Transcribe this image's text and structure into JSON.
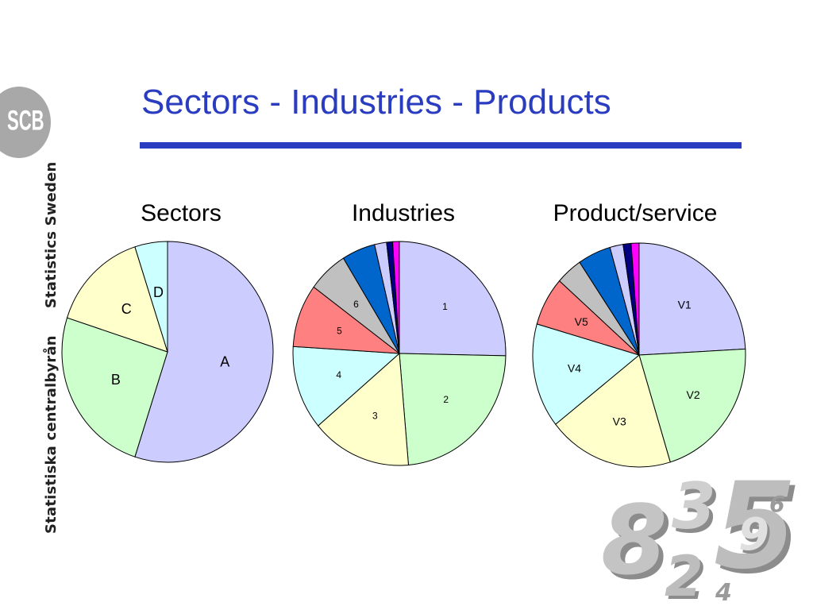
{
  "title": "Sectors - Industries - Products",
  "logo": {
    "text": "SCB",
    "color": "#a8a8a8"
  },
  "side_text": {
    "top": "Statistics Sweden",
    "bottom": "Statistiska centralbyrån"
  },
  "colors": {
    "title": "#2a3cbf",
    "rule": "#2a3cbf"
  },
  "chart_data": [
    {
      "type": "pie",
      "title": "Sectors",
      "slices": [
        {
          "label": "A",
          "value": 55,
          "color": "#ccccff"
        },
        {
          "label": "B",
          "value": 25,
          "color": "#ccffcc"
        },
        {
          "label": "C",
          "value": 15,
          "color": "#ffffcc"
        },
        {
          "label": "D",
          "value": 5,
          "color": "#ccffff"
        }
      ]
    },
    {
      "type": "pie",
      "title": "Industries",
      "slices": [
        {
          "label": "1",
          "value": 25,
          "color": "#ccccff"
        },
        {
          "label": "2",
          "value": 23,
          "color": "#ccffcc"
        },
        {
          "label": "3",
          "value": 15,
          "color": "#ffffcc"
        },
        {
          "label": "4",
          "value": 12,
          "color": "#ccffff"
        },
        {
          "label": "5",
          "value": 9,
          "color": "#ff8080"
        },
        {
          "label": "",
          "value": 6,
          "color": "#c0c0c0"
        },
        {
          "label": "",
          "value": 5,
          "color": "#0066cc"
        },
        {
          "label": "",
          "value": 1.8,
          "color": "#ccccff"
        },
        {
          "label": "",
          "value": 0.9,
          "color": "#000080"
        },
        {
          "label": "",
          "value": 1.0,
          "color": "#ff00ff"
        }
      ],
      "extra_labels": [
        {
          "label": "6",
          "slice": 5
        }
      ]
    },
    {
      "type": "pie",
      "title": "Product/service",
      "slices": [
        {
          "label": "V1",
          "value": 24,
          "color": "#ccccff"
        },
        {
          "label": "V2",
          "value": 21,
          "color": "#ccffcc"
        },
        {
          "label": "V3",
          "value": 19,
          "color": "#ffffcc"
        },
        {
          "label": "V4",
          "value": 15,
          "color": "#ccffff"
        },
        {
          "label": "V5",
          "value": 7,
          "color": "#ff8080"
        },
        {
          "label": "",
          "value": 4,
          "color": "#c0c0c0"
        },
        {
          "label": "",
          "value": 5,
          "color": "#0066cc"
        },
        {
          "label": "",
          "value": 2,
          "color": "#ccccff"
        },
        {
          "label": "",
          "value": 1.2,
          "color": "#000080"
        },
        {
          "label": "",
          "value": 1.2,
          "color": "#ff00ff"
        }
      ]
    }
  ],
  "decoration": {
    "digits": [
      "8",
      "3",
      "5",
      "2",
      "9",
      "6",
      "4"
    ]
  }
}
